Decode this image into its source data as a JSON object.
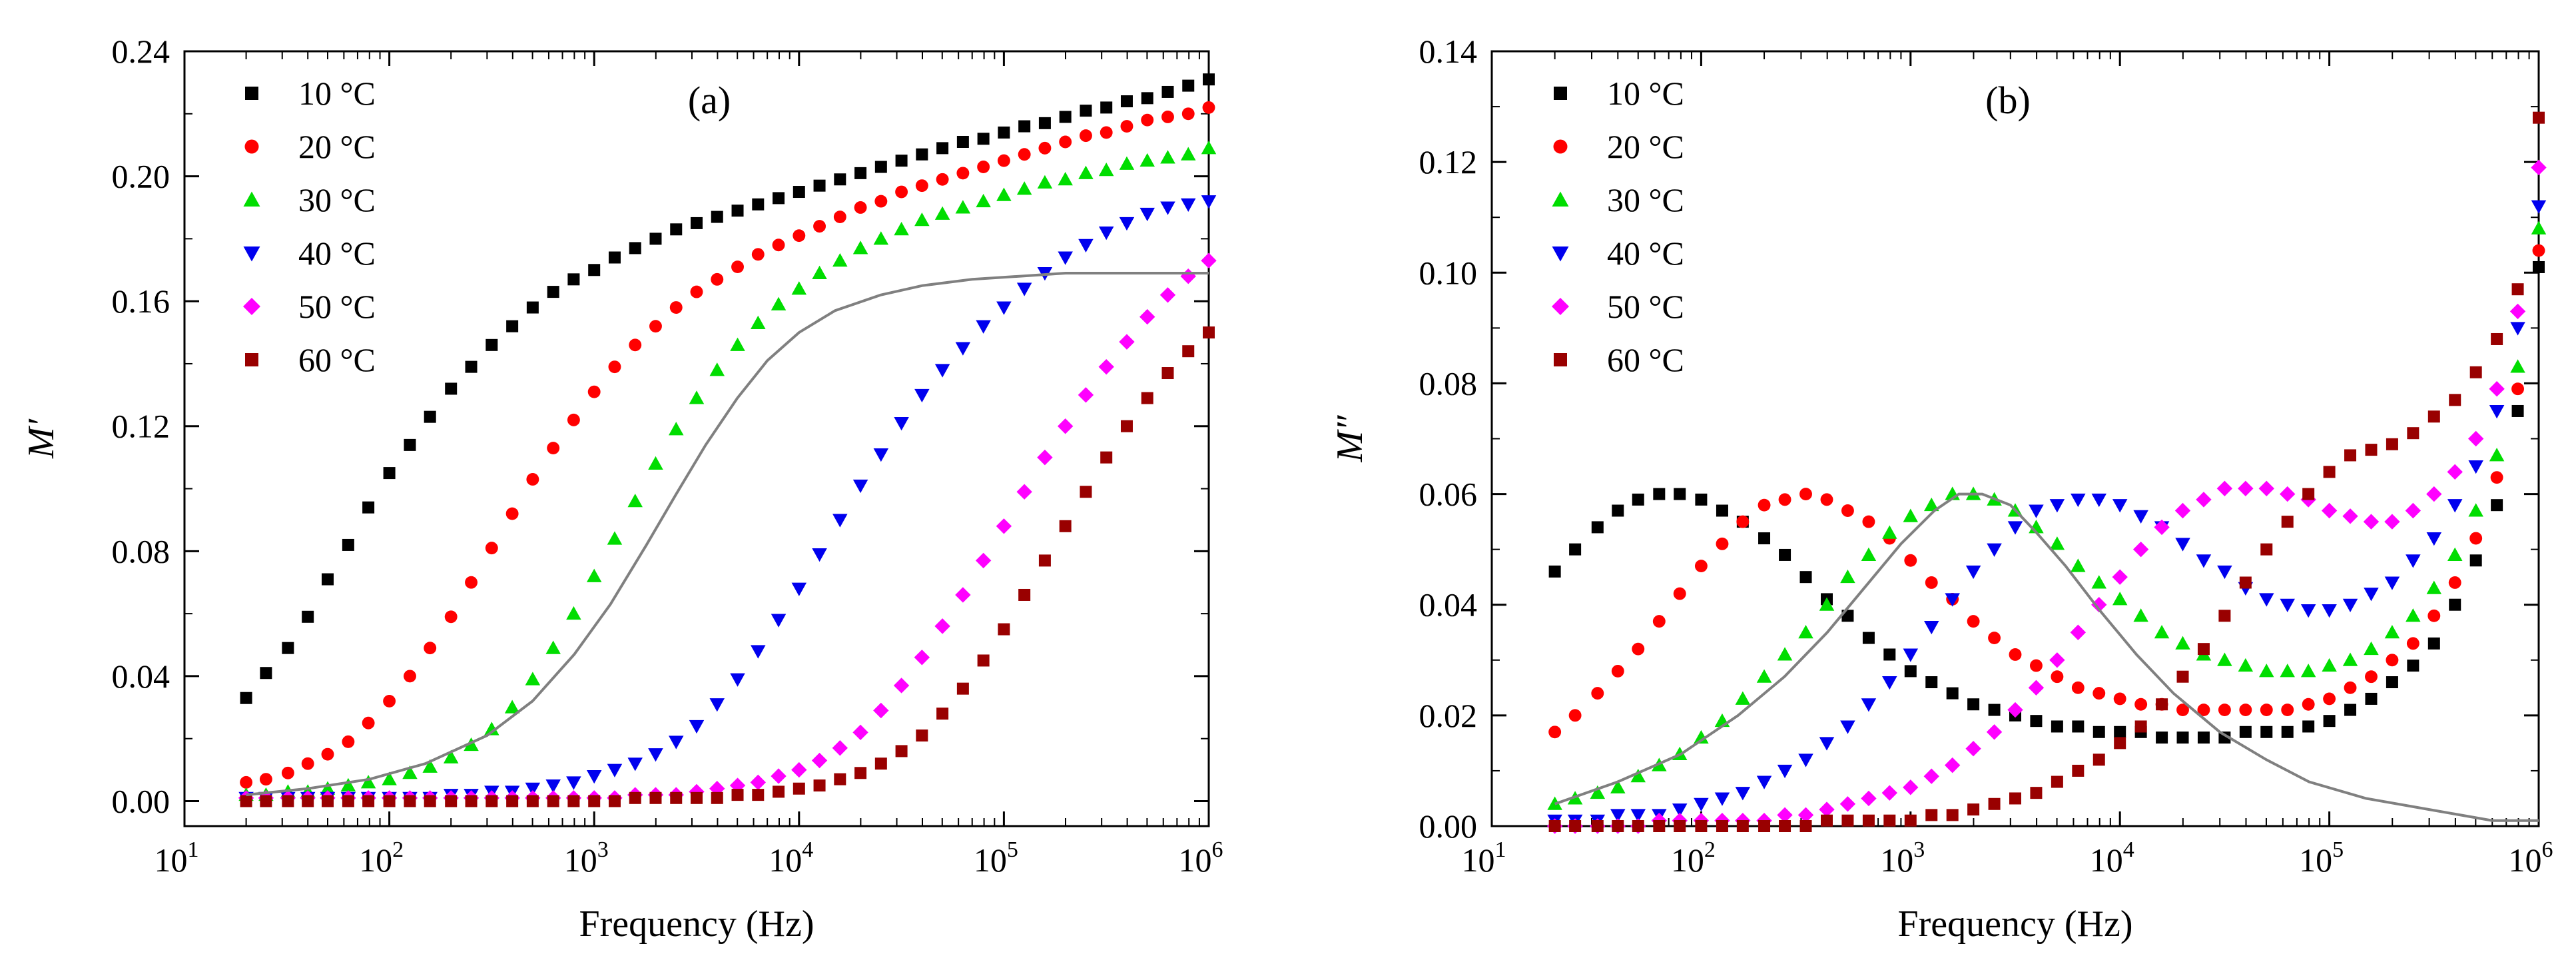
{
  "chart_data": [
    {
      "id": "panel-a",
      "type": "scatter",
      "panel_label": "(a)",
      "xlabel": "Frequency (Hz)",
      "ylabel": "M′",
      "xscale": "log",
      "xlim": [
        10,
        1000000
      ],
      "ylim": [
        -0.008,
        0.24
      ],
      "legend_position": "top-left",
      "x_ticks": [
        {
          "base": "10",
          "exp": "1"
        },
        {
          "base": "10",
          "exp": "2"
        },
        {
          "base": "10",
          "exp": "3"
        },
        {
          "base": "10",
          "exp": "4"
        },
        {
          "base": "10",
          "exp": "5"
        },
        {
          "base": "10",
          "exp": "6"
        }
      ],
      "y_ticks": [
        "0.00",
        "0.04",
        "0.08",
        "0.12",
        "0.16",
        "0.20",
        "0.24"
      ],
      "x": [
        20,
        25,
        32,
        40,
        50,
        63,
        79,
        100,
        126,
        158,
        200,
        251,
        316,
        398,
        501,
        631,
        794,
        1000,
        1259,
        1585,
        1995,
        2512,
        3162,
        3981,
        5012,
        6310,
        7943,
        10000,
        12589,
        15849,
        19953,
        25119,
        31623,
        39811,
        50119,
        63096,
        79433,
        100000,
        125893,
        158489,
        199526,
        251189,
        316228,
        398107,
        501187,
        630957,
        794328,
        1000000
      ],
      "series": [
        {
          "name": "10 °C",
          "color": "#000000",
          "marker": "square",
          "values": [
            0.033,
            0.041,
            0.049,
            0.059,
            0.071,
            0.082,
            0.094,
            0.105,
            0.114,
            0.123,
            0.132,
            0.139,
            0.146,
            0.152,
            0.158,
            0.163,
            0.167,
            0.17,
            0.174,
            0.177,
            0.18,
            0.183,
            0.185,
            0.187,
            0.189,
            0.191,
            0.193,
            0.195,
            0.197,
            0.199,
            0.201,
            0.203,
            0.205,
            0.207,
            0.209,
            0.211,
            0.212,
            0.214,
            0.216,
            0.217,
            0.219,
            0.221,
            0.222,
            0.224,
            0.225,
            0.227,
            0.229,
            0.231
          ]
        },
        {
          "name": "20 °C",
          "color": "#ff0000",
          "marker": "circle",
          "values": [
            0.006,
            0.007,
            0.009,
            0.012,
            0.015,
            0.019,
            0.025,
            0.032,
            0.04,
            0.049,
            0.059,
            0.07,
            0.081,
            0.092,
            0.103,
            0.113,
            0.122,
            0.131,
            0.139,
            0.146,
            0.152,
            0.158,
            0.163,
            0.167,
            0.171,
            0.175,
            0.178,
            0.181,
            0.184,
            0.187,
            0.19,
            0.192,
            0.195,
            0.197,
            0.199,
            0.201,
            0.203,
            0.205,
            0.207,
            0.209,
            0.211,
            0.213,
            0.214,
            0.216,
            0.218,
            0.219,
            0.22,
            0.222
          ]
        },
        {
          "name": "30 °C",
          "color": "#00dd00",
          "marker": "triangle-up",
          "values": [
            0.002,
            0.002,
            0.003,
            0.003,
            0.004,
            0.005,
            0.006,
            0.007,
            0.009,
            0.011,
            0.014,
            0.018,
            0.023,
            0.03,
            0.039,
            0.049,
            0.06,
            0.072,
            0.084,
            0.096,
            0.108,
            0.119,
            0.129,
            0.138,
            0.146,
            0.153,
            0.159,
            0.164,
            0.169,
            0.173,
            0.177,
            0.18,
            0.183,
            0.186,
            0.188,
            0.19,
            0.192,
            0.194,
            0.196,
            0.198,
            0.199,
            0.201,
            0.202,
            0.204,
            0.205,
            0.206,
            0.207,
            0.209
          ]
        },
        {
          "name": "40 °C",
          "color": "#0000ee",
          "marker": "triangle-down",
          "values": [
            0.001,
            0.001,
            0.001,
            0.001,
            0.001,
            0.001,
            0.001,
            0.001,
            0.001,
            0.001,
            0.002,
            0.002,
            0.003,
            0.003,
            0.004,
            0.005,
            0.006,
            0.008,
            0.01,
            0.012,
            0.015,
            0.019,
            0.024,
            0.031,
            0.039,
            0.048,
            0.058,
            0.068,
            0.079,
            0.09,
            0.101,
            0.111,
            0.121,
            0.13,
            0.138,
            0.145,
            0.152,
            0.158,
            0.164,
            0.169,
            0.174,
            0.178,
            0.182,
            0.185,
            0.188,
            0.19,
            0.191,
            0.192
          ]
        },
        {
          "name": "50 °C",
          "color": "#ff00ff",
          "marker": "diamond",
          "values": [
            0.001,
            0.001,
            0.001,
            0.001,
            0.001,
            0.001,
            0.001,
            0.001,
            0.001,
            0.001,
            0.001,
            0.001,
            0.001,
            0.001,
            0.001,
            0.001,
            0.001,
            0.001,
            0.001,
            0.002,
            0.002,
            0.002,
            0.003,
            0.004,
            0.005,
            0.006,
            0.008,
            0.01,
            0.013,
            0.017,
            0.022,
            0.029,
            0.037,
            0.046,
            0.056,
            0.066,
            0.077,
            0.088,
            0.099,
            0.11,
            0.12,
            0.13,
            0.139,
            0.147,
            0.155,
            0.162,
            0.168,
            0.173
          ]
        },
        {
          "name": "60 °C",
          "color": "#990000",
          "marker": "square",
          "values": [
            0.0,
            0.0,
            0.0,
            0.0,
            0.0,
            0.0,
            0.0,
            0.0,
            0.0,
            0.0,
            0.0,
            0.0,
            0.0,
            0.0,
            0.0,
            0.0,
            0.0,
            0.0,
            0.0,
            0.001,
            0.001,
            0.001,
            0.001,
            0.001,
            0.002,
            0.002,
            0.003,
            0.004,
            0.005,
            0.007,
            0.009,
            0.012,
            0.016,
            0.021,
            0.028,
            0.036,
            0.045,
            0.055,
            0.066,
            0.077,
            0.088,
            0.099,
            0.11,
            0.12,
            0.129,
            0.137,
            0.144,
            0.15
          ]
        }
      ],
      "fit_curve": {
        "color": "#808080",
        "x": [
          20,
          40,
          80,
          150,
          300,
          500,
          800,
          1200,
          1800,
          2500,
          3500,
          5000,
          7000,
          10000,
          15000,
          25000,
          40000,
          70000,
          120000,
          200000,
          400000,
          700000,
          1000000
        ],
        "values": [
          0.002,
          0.004,
          0.007,
          0.012,
          0.021,
          0.032,
          0.047,
          0.063,
          0.082,
          0.098,
          0.114,
          0.129,
          0.141,
          0.15,
          0.157,
          0.162,
          0.165,
          0.167,
          0.168,
          0.169,
          0.169,
          0.169,
          0.169
        ]
      }
    },
    {
      "id": "panel-b",
      "type": "scatter",
      "panel_label": "(b)",
      "xlabel": "Frequency (Hz)",
      "ylabel": "M″",
      "xscale": "log",
      "xlim": [
        10,
        1000000
      ],
      "ylim": [
        0,
        0.14
      ],
      "legend_position": "top-left",
      "x_ticks": [
        {
          "base": "10",
          "exp": "1"
        },
        {
          "base": "10",
          "exp": "2"
        },
        {
          "base": "10",
          "exp": "3"
        },
        {
          "base": "10",
          "exp": "4"
        },
        {
          "base": "10",
          "exp": "5"
        },
        {
          "base": "10",
          "exp": "6"
        }
      ],
      "y_ticks": [
        "0.00",
        "0.02",
        "0.04",
        "0.06",
        "0.08",
        "0.10",
        "0.12",
        "0.14"
      ],
      "x": [
        20,
        25,
        32,
        40,
        50,
        63,
        79,
        100,
        126,
        158,
        200,
        251,
        316,
        398,
        501,
        631,
        794,
        1000,
        1259,
        1585,
        1995,
        2512,
        3162,
        3981,
        5012,
        6310,
        7943,
        10000,
        12589,
        15849,
        19953,
        25119,
        31623,
        39811,
        50119,
        63096,
        79433,
        100000,
        125893,
        158489,
        199526,
        251189,
        316228,
        398107,
        501187,
        630957,
        794328,
        1000000
      ],
      "series": [
        {
          "name": "10 °C",
          "color": "#000000",
          "marker": "square",
          "values": [
            0.046,
            0.05,
            0.054,
            0.057,
            0.059,
            0.06,
            0.06,
            0.059,
            0.057,
            0.055,
            0.052,
            0.049,
            0.045,
            0.041,
            0.038,
            0.034,
            0.031,
            0.028,
            0.026,
            0.024,
            0.022,
            0.021,
            0.02,
            0.019,
            0.018,
            0.018,
            0.017,
            0.017,
            0.017,
            0.016,
            0.016,
            0.016,
            0.016,
            0.017,
            0.017,
            0.017,
            0.018,
            0.019,
            0.021,
            0.023,
            0.026,
            0.029,
            0.033,
            0.04,
            0.048,
            0.058,
            0.075,
            0.101
          ]
        },
        {
          "name": "20 °C",
          "color": "#ff0000",
          "marker": "circle",
          "values": [
            0.017,
            0.02,
            0.024,
            0.028,
            0.032,
            0.037,
            0.042,
            0.047,
            0.051,
            0.055,
            0.058,
            0.059,
            0.06,
            0.059,
            0.057,
            0.055,
            0.052,
            0.048,
            0.044,
            0.041,
            0.037,
            0.034,
            0.031,
            0.029,
            0.027,
            0.025,
            0.024,
            0.023,
            0.022,
            0.022,
            0.021,
            0.021,
            0.021,
            0.021,
            0.021,
            0.021,
            0.022,
            0.023,
            0.025,
            0.027,
            0.03,
            0.033,
            0.038,
            0.044,
            0.052,
            0.063,
            0.079,
            0.104
          ]
        },
        {
          "name": "30 °C",
          "color": "#00dd00",
          "marker": "triangle-up",
          "values": [
            0.004,
            0.005,
            0.006,
            0.007,
            0.009,
            0.011,
            0.013,
            0.016,
            0.019,
            0.023,
            0.027,
            0.031,
            0.035,
            0.04,
            0.045,
            0.049,
            0.053,
            0.056,
            0.058,
            0.06,
            0.06,
            0.059,
            0.057,
            0.054,
            0.051,
            0.047,
            0.044,
            0.041,
            0.038,
            0.035,
            0.033,
            0.031,
            0.03,
            0.029,
            0.028,
            0.028,
            0.028,
            0.029,
            0.03,
            0.032,
            0.035,
            0.038,
            0.043,
            0.049,
            0.057,
            0.067,
            0.083,
            0.108
          ]
        },
        {
          "name": "40 °C",
          "color": "#0000ee",
          "marker": "triangle-down",
          "values": [
            0.001,
            0.001,
            0.001,
            0.002,
            0.002,
            0.002,
            0.003,
            0.004,
            0.005,
            0.006,
            0.008,
            0.01,
            0.012,
            0.015,
            0.018,
            0.022,
            0.026,
            0.031,
            0.036,
            0.041,
            0.046,
            0.05,
            0.054,
            0.057,
            0.058,
            0.059,
            0.059,
            0.058,
            0.056,
            0.054,
            0.051,
            0.048,
            0.046,
            0.043,
            0.041,
            0.04,
            0.039,
            0.039,
            0.04,
            0.042,
            0.044,
            0.048,
            0.052,
            0.058,
            0.065,
            0.075,
            0.09,
            0.112
          ]
        },
        {
          "name": "50 °C",
          "color": "#ff00ff",
          "marker": "diamond",
          "values": [
            0.0,
            0.0,
            0.0,
            0.0,
            0.0,
            0.001,
            0.001,
            0.001,
            0.001,
            0.001,
            0.001,
            0.002,
            0.002,
            0.003,
            0.004,
            0.005,
            0.006,
            0.007,
            0.009,
            0.011,
            0.014,
            0.017,
            0.021,
            0.025,
            0.03,
            0.035,
            0.04,
            0.045,
            0.05,
            0.054,
            0.057,
            0.059,
            0.061,
            0.061,
            0.061,
            0.06,
            0.059,
            0.057,
            0.056,
            0.055,
            0.055,
            0.057,
            0.06,
            0.064,
            0.07,
            0.079,
            0.093,
            0.119
          ]
        },
        {
          "name": "60 °C",
          "color": "#990000",
          "marker": "square",
          "values": [
            0.0,
            0.0,
            0.0,
            0.0,
            0.0,
            0.0,
            0.0,
            0.0,
            0.0,
            0.0,
            0.0,
            0.0,
            0.0,
            0.001,
            0.001,
            0.001,
            0.001,
            0.001,
            0.002,
            0.002,
            0.003,
            0.004,
            0.005,
            0.006,
            0.008,
            0.01,
            0.012,
            0.015,
            0.018,
            0.022,
            0.027,
            0.032,
            0.038,
            0.044,
            0.05,
            0.055,
            0.06,
            0.064,
            0.067,
            0.068,
            0.069,
            0.071,
            0.074,
            0.077,
            0.082,
            0.088,
            0.097,
            0.128
          ]
        }
      ],
      "fit_curve": {
        "color": "#808080",
        "x": [
          20,
          40,
          80,
          150,
          250,
          400,
          600,
          900,
          1300,
          1700,
          2200,
          3000,
          4000,
          5500,
          8000,
          12000,
          18000,
          30000,
          50000,
          80000,
          150000,
          300000,
          600000,
          1000000
        ],
        "values": [
          0.004,
          0.008,
          0.013,
          0.02,
          0.027,
          0.035,
          0.043,
          0.051,
          0.057,
          0.06,
          0.06,
          0.058,
          0.053,
          0.047,
          0.039,
          0.031,
          0.024,
          0.017,
          0.012,
          0.008,
          0.005,
          0.003,
          0.001,
          0.001
        ]
      }
    }
  ]
}
